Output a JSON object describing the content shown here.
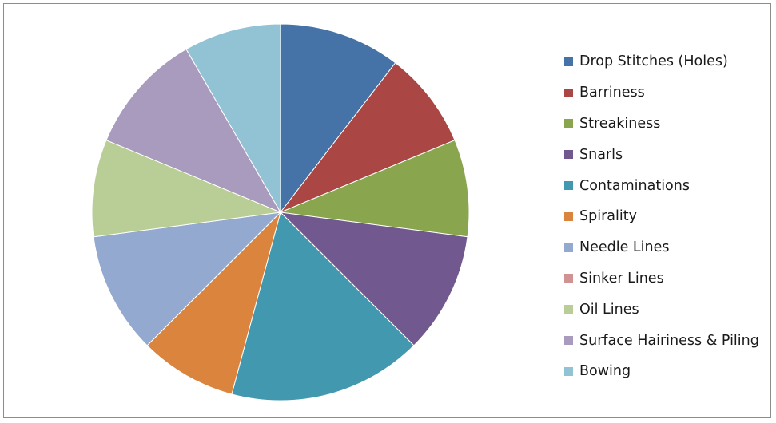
{
  "chart_data": {
    "type": "pie",
    "title": "",
    "legend_position": "right",
    "categories": [
      "Drop Stitches (Holes)",
      "Barriness",
      "Streakiness",
      "Snarls",
      "Contaminations",
      "Spirality",
      "Needle Lines",
      "Sinker Lines",
      "Oil Lines",
      "Surface Hairiness & Piling",
      "Bowing"
    ],
    "values": [
      10,
      8,
      8,
      10,
      16,
      8,
      10,
      0,
      8,
      10,
      8
    ],
    "colors": [
      "#4572a7",
      "#aa4643",
      "#89a54e",
      "#71588f",
      "#4198af",
      "#db843d",
      "#93a9cf",
      "#d19392",
      "#b9cd96",
      "#a99bbd",
      "#92c3d4"
    ]
  }
}
